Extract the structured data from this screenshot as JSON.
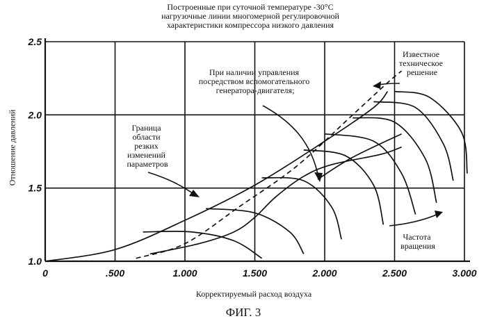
{
  "figure_label": "ФИГ. 3",
  "chart_data": {
    "type": "line",
    "title_lines": [
      "Построенные при суточной температуре -30°С",
      "нагрузочные линии многомерной регулировочной",
      "характеристики компрессора низкого давления"
    ],
    "xlabel": "Корректируемый расход воздуха",
    "ylabel": "Отношение давлений",
    "xlim": [
      0,
      3.0
    ],
    "ylim": [
      1.0,
      2.5
    ],
    "x_ticks": [
      0,
      0.5,
      1.0,
      1.5,
      2.0,
      2.5,
      3.0
    ],
    "x_tick_labels": [
      "0",
      ".500",
      "1.000",
      "1.500",
      "2.000",
      "2.500",
      "3.000"
    ],
    "y_ticks": [
      1.0,
      1.5,
      2.0,
      2.5
    ],
    "y_tick_labels": [
      "1.0",
      "1.5",
      "2.0",
      "2.5"
    ],
    "grid": true,
    "series": [
      {
        "style": "solid",
        "points": [
          [
            0,
            1.0
          ],
          [
            0.5,
            1.08
          ],
          [
            1.0,
            1.28
          ],
          [
            1.5,
            1.52
          ],
          [
            2.0,
            1.82
          ],
          [
            2.35,
            2.05
          ],
          [
            2.45,
            2.16
          ]
        ]
      },
      {
        "style": "solid",
        "points": [
          [
            1.95,
            1.56
          ],
          [
            2.2,
            1.71
          ],
          [
            2.55,
            1.87
          ]
        ]
      },
      {
        "style": "dashed",
        "points": [
          [
            0.65,
            1.02
          ],
          [
            1.0,
            1.12
          ],
          [
            1.4,
            1.38
          ],
          [
            1.8,
            1.65
          ],
          [
            2.2,
            2.0
          ],
          [
            2.45,
            2.22
          ],
          [
            2.55,
            2.3
          ]
        ]
      },
      {
        "style": "solid",
        "points": [
          [
            0.7,
            1.2
          ],
          [
            1.05,
            1.2
          ],
          [
            1.35,
            1.14
          ],
          [
            1.55,
            1.02
          ]
        ]
      },
      {
        "style": "solid",
        "points": [
          [
            1.15,
            1.36
          ],
          [
            1.5,
            1.33
          ],
          [
            1.75,
            1.2
          ],
          [
            1.85,
            1.05
          ]
        ]
      },
      {
        "style": "solid",
        "points": [
          [
            1.55,
            1.57
          ],
          [
            1.85,
            1.55
          ],
          [
            2.05,
            1.37
          ],
          [
            2.12,
            1.15
          ]
        ]
      },
      {
        "style": "solid",
        "points": [
          [
            1.85,
            1.76
          ],
          [
            2.15,
            1.72
          ],
          [
            2.35,
            1.52
          ],
          [
            2.42,
            1.25
          ]
        ]
      },
      {
        "style": "solid",
        "points": [
          [
            2.0,
            1.87
          ],
          [
            2.35,
            1.82
          ],
          [
            2.55,
            1.6
          ],
          [
            2.65,
            1.32
          ]
        ]
      },
      {
        "style": "solid",
        "points": [
          [
            2.2,
            1.98
          ],
          [
            2.5,
            1.95
          ],
          [
            2.72,
            1.7
          ],
          [
            2.8,
            1.4
          ]
        ]
      },
      {
        "style": "solid",
        "points": [
          [
            2.35,
            2.09
          ],
          [
            2.65,
            2.05
          ],
          [
            2.85,
            1.8
          ],
          [
            2.92,
            1.55
          ]
        ]
      },
      {
        "style": "solid",
        "points": [
          [
            2.5,
            2.16
          ],
          [
            2.75,
            2.12
          ],
          [
            2.98,
            1.88
          ],
          [
            3.02,
            1.6
          ]
        ]
      },
      {
        "style": "solid",
        "points": [
          [
            0.75,
            1.05
          ],
          [
            1.1,
            1.12
          ],
          [
            1.35,
            1.2
          ],
          [
            1.5,
            1.3
          ],
          [
            1.65,
            1.44
          ],
          [
            1.85,
            1.58
          ],
          [
            2.05,
            1.66
          ],
          [
            2.4,
            1.73
          ],
          [
            2.55,
            1.78
          ]
        ]
      }
    ],
    "annotations": [
      {
        "text_lines": [
          "Известное",
          "техническое",
          "решение"
        ]
      },
      {
        "text_lines": [
          "При наличии управления",
          "посредством вспомогательного",
          "генератора-двигателя;"
        ]
      },
      {
        "text_lines": [
          "Граница",
          "области",
          "резких",
          "изменений",
          "параметров"
        ]
      },
      {
        "text_lines": [
          "Частота",
          "вращения"
        ]
      }
    ]
  }
}
